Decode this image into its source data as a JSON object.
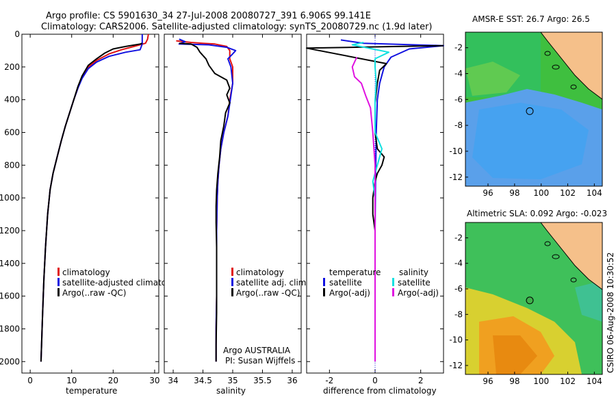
{
  "header": {
    "line1": "Argo profile: CS 5901630_34 27-Jul-2008 20080727_391 6.906S 99.141E",
    "line2": "Climatology: CARS2006. Satellite-adjusted climatology: synTS_20080729.nc (1.9d later)"
  },
  "side_label": "CSIRO 06-Aug-2008 10:30:52",
  "colors": {
    "red": "#e01010",
    "blue": "#1010e0",
    "black": "#000000",
    "cyan": "#10e0e0",
    "magenta": "#e010e0",
    "land": "#f5c08a"
  },
  "chart_data": [
    {
      "type": "line",
      "id": "temperature",
      "xlabel": "temperature",
      "xlim": [
        -2,
        31
      ],
      "ylim": [
        2070,
        0
      ],
      "xticks": [
        0,
        10,
        20,
        30
      ],
      "yticks": [
        0,
        200,
        400,
        600,
        800,
        1000,
        1200,
        1400,
        1600,
        1800,
        2000
      ],
      "legend": [
        "climatology",
        "satellite-adjusted climatology",
        "Argo(..raw -QC)"
      ],
      "series": [
        {
          "name": "climatology",
          "color": "red",
          "points": [
            [
              28.5,
              0
            ],
            [
              28.3,
              30
            ],
            [
              27.8,
              55
            ],
            [
              25,
              75
            ],
            [
              22,
              95
            ],
            [
              19,
              120
            ],
            [
              16,
              160
            ],
            [
              14,
              200
            ],
            [
              12.5,
              260
            ],
            [
              11.5,
              330
            ],
            [
              10.5,
              400
            ],
            [
              9.5,
              480
            ],
            [
              8.5,
              560
            ],
            [
              7.5,
              650
            ],
            [
              6.5,
              750
            ],
            [
              5.5,
              850
            ],
            [
              4.8,
              950
            ],
            [
              4.2,
              1100
            ],
            [
              3.7,
              1300
            ],
            [
              3.3,
              1500
            ],
            [
              3,
              1700
            ],
            [
              2.8,
              1850
            ],
            [
              2.6,
              2000
            ]
          ]
        },
        {
          "name": "satellite-adjusted climatology",
          "color": "blue",
          "points": [
            [
              27,
              0
            ],
            [
              27,
              60
            ],
            [
              26.5,
              95
            ],
            [
              23,
              110
            ],
            [
              19,
              135
            ],
            [
              16,
              170
            ],
            [
              14,
              210
            ],
            [
              12.5,
              270
            ],
            [
              11.5,
              330
            ],
            [
              10.5,
              400
            ],
            [
              9.5,
              480
            ],
            [
              8.5,
              560
            ],
            [
              7.5,
              650
            ],
            [
              6.5,
              750
            ],
            [
              5.5,
              850
            ],
            [
              4.8,
              950
            ],
            [
              4.2,
              1100
            ],
            [
              3.7,
              1300
            ],
            [
              3.3,
              1500
            ],
            [
              3,
              1700
            ],
            [
              2.8,
              1850
            ],
            [
              2.6,
              2000
            ]
          ]
        },
        {
          "name": "Argo(..raw -QC)",
          "color": "black",
          "points": [
            [
              27,
              55
            ],
            [
              26.5,
              60
            ],
            [
              23,
              75
            ],
            [
              20,
              90
            ],
            [
              18,
              115
            ],
            [
              16,
              150
            ],
            [
              14,
              190
            ],
            [
              12.5,
              255
            ],
            [
              11.5,
              320
            ],
            [
              10.5,
              400
            ],
            [
              9.5,
              480
            ],
            [
              8.5,
              560
            ],
            [
              7.5,
              650
            ],
            [
              6.5,
              750
            ],
            [
              5.5,
              850
            ],
            [
              4.8,
              950
            ],
            [
              4.2,
              1100
            ],
            [
              3.7,
              1300
            ],
            [
              3.3,
              1500
            ],
            [
              3,
              1700
            ],
            [
              2.8,
              1850
            ],
            [
              2.6,
              2000
            ]
          ]
        }
      ]
    },
    {
      "type": "line",
      "id": "salinity",
      "xlabel": "salinity",
      "xlim": [
        33.85,
        36.15
      ],
      "ylim": [
        2070,
        0
      ],
      "xticks": [
        34,
        34.5,
        35,
        35.5,
        36
      ],
      "legend": [
        "climatology",
        "satellite adj. clim.",
        "Argo(..raw -QC)"
      ],
      "annotations": [
        "Argo AUSTRALIA",
        "PI: Susan Wijffels"
      ],
      "series": [
        {
          "name": "climatology",
          "color": "red",
          "points": [
            [
              34.05,
              40
            ],
            [
              34.3,
              50
            ],
            [
              34.5,
              55
            ],
            [
              34.7,
              60
            ],
            [
              34.9,
              75
            ],
            [
              34.95,
              100
            ],
            [
              34.95,
              150
            ],
            [
              35.0,
              200
            ],
            [
              35.0,
              300
            ],
            [
              34.95,
              400
            ],
            [
              34.92,
              500
            ],
            [
              34.85,
              600
            ],
            [
              34.8,
              700
            ],
            [
              34.77,
              800
            ],
            [
              34.75,
              900
            ],
            [
              34.74,
              1000
            ],
            [
              34.73,
              1200
            ],
            [
              34.73,
              1400
            ],
            [
              34.73,
              1600
            ],
            [
              34.72,
              1800
            ],
            [
              34.72,
              2000
            ]
          ]
        },
        {
          "name": "satellite adj. clim.",
          "color": "blue",
          "points": [
            [
              34.1,
              30
            ],
            [
              34.2,
              45
            ],
            [
              34.1,
              60
            ],
            [
              34.6,
              65
            ],
            [
              34.9,
              80
            ],
            [
              35.05,
              100
            ],
            [
              35.0,
              120
            ],
            [
              34.92,
              150
            ],
            [
              34.97,
              200
            ],
            [
              35.0,
              300
            ],
            [
              34.96,
              400
            ],
            [
              34.92,
              500
            ],
            [
              34.85,
              600
            ],
            [
              34.8,
              700
            ],
            [
              34.77,
              800
            ],
            [
              34.75,
              900
            ],
            [
              34.74,
              1000
            ],
            [
              34.73,
              1200
            ],
            [
              34.73,
              1400
            ],
            [
              34.73,
              1600
            ],
            [
              34.72,
              1800
            ],
            [
              34.72,
              2000
            ]
          ]
        },
        {
          "name": "Argo(..raw -QC)",
          "color": "black",
          "points": [
            [
              34.1,
              55
            ],
            [
              34.3,
              60
            ],
            [
              34.4,
              80
            ],
            [
              34.45,
              110
            ],
            [
              34.55,
              150
            ],
            [
              34.6,
              190
            ],
            [
              34.7,
              240
            ],
            [
              34.9,
              280
            ],
            [
              34.95,
              330
            ],
            [
              34.9,
              370
            ],
            [
              34.95,
              420
            ],
            [
              34.88,
              480
            ],
            [
              34.85,
              560
            ],
            [
              34.8,
              650
            ],
            [
              34.78,
              750
            ],
            [
              34.75,
              850
            ],
            [
              34.73,
              950
            ],
            [
              34.72,
              1050
            ],
            [
              34.72,
              1150
            ],
            [
              34.73,
              1300
            ],
            [
              34.73,
              1500
            ],
            [
              34.73,
              1700
            ],
            [
              34.72,
              1900
            ],
            [
              34.72,
              2000
            ]
          ]
        }
      ]
    },
    {
      "type": "line",
      "id": "difference",
      "xlabel": "difference from climatology",
      "xlim": [
        -3,
        3
      ],
      "ylim": [
        2070,
        0
      ],
      "xticks": [
        -2,
        0,
        2
      ],
      "legend_left": [
        "temperature",
        "satellite",
        "Argo(-adj)"
      ],
      "legend_right": [
        "salinity",
        "satellite",
        "Argo(-adj)"
      ],
      "series": [
        {
          "name": "temperature satellite",
          "color": "blue",
          "points": [
            [
              -1.5,
              35
            ],
            [
              -0.5,
              55
            ],
            [
              3,
              70
            ],
            [
              1.5,
              90
            ],
            [
              0.7,
              140
            ],
            [
              0.4,
              200
            ],
            [
              0.2,
              300
            ],
            [
              0.1,
              400
            ],
            [
              0.05,
              600
            ],
            [
              0.02,
              900
            ],
            [
              0,
              1200
            ],
            [
              0,
              2000
            ]
          ]
        },
        {
          "name": "temperature Argo(-adj)",
          "color": "black",
          "points": [
            [
              3,
              70
            ],
            [
              1,
              75
            ],
            [
              -3,
              85
            ],
            [
              0.5,
              180
            ],
            [
              0.2,
              220
            ],
            [
              0.1,
              300
            ],
            [
              0,
              420
            ],
            [
              0,
              600
            ],
            [
              0.1,
              700
            ],
            [
              0.4,
              750
            ],
            [
              0.3,
              800
            ],
            [
              0.1,
              850
            ],
            [
              0,
              900
            ],
            [
              -0.1,
              1000
            ],
            [
              -0.1,
              1100
            ],
            [
              0,
              1200
            ],
            [
              0,
              2000
            ]
          ]
        },
        {
          "name": "salinity satellite",
          "color": "cyan",
          "points": [
            [
              -0.5,
              50
            ],
            [
              -1,
              65
            ],
            [
              0.6,
              110
            ],
            [
              0,
              150
            ],
            [
              0,
              200
            ],
            [
              0.05,
              300
            ],
            [
              0,
              400
            ],
            [
              0,
              500
            ],
            [
              0,
              600
            ],
            [
              0.3,
              700
            ],
            [
              0.1,
              800
            ],
            [
              -0.1,
              900
            ],
            [
              0,
              1000
            ],
            [
              0,
              2000
            ]
          ]
        },
        {
          "name": "salinity Argo(-adj)",
          "color": "magenta",
          "points": [
            [
              -0.8,
              140
            ],
            [
              -1.0,
              200
            ],
            [
              -0.9,
              260
            ],
            [
              -0.6,
              300
            ],
            [
              -0.4,
              380
            ],
            [
              -0.2,
              450
            ],
            [
              -0.1,
              600
            ],
            [
              0,
              800
            ],
            [
              0,
              2000
            ]
          ]
        }
      ]
    }
  ],
  "maps": [
    {
      "title": "AMSR-E SST: 26.7 Argo: 26.5",
      "xticks": [
        96,
        98,
        100,
        102,
        104
      ],
      "yticks": [
        -2,
        -4,
        -6,
        -8,
        -10,
        -12
      ],
      "xlim": [
        94.3,
        104.6
      ],
      "ylim": [
        -12.7,
        -0.8
      ],
      "argo_lon": 99.141,
      "argo_lat": -6.906
    },
    {
      "title": "Altimetric SLA: 0.092 Argo: -0.023",
      "xticks": [
        96,
        98,
        100,
        102,
        104
      ],
      "yticks": [
        -2,
        -4,
        -6,
        -8,
        -10,
        -12
      ],
      "xlim": [
        94.3,
        104.6
      ],
      "ylim": [
        -12.7,
        -0.8
      ],
      "argo_lon": 99.141,
      "argo_lat": -6.906
    }
  ]
}
